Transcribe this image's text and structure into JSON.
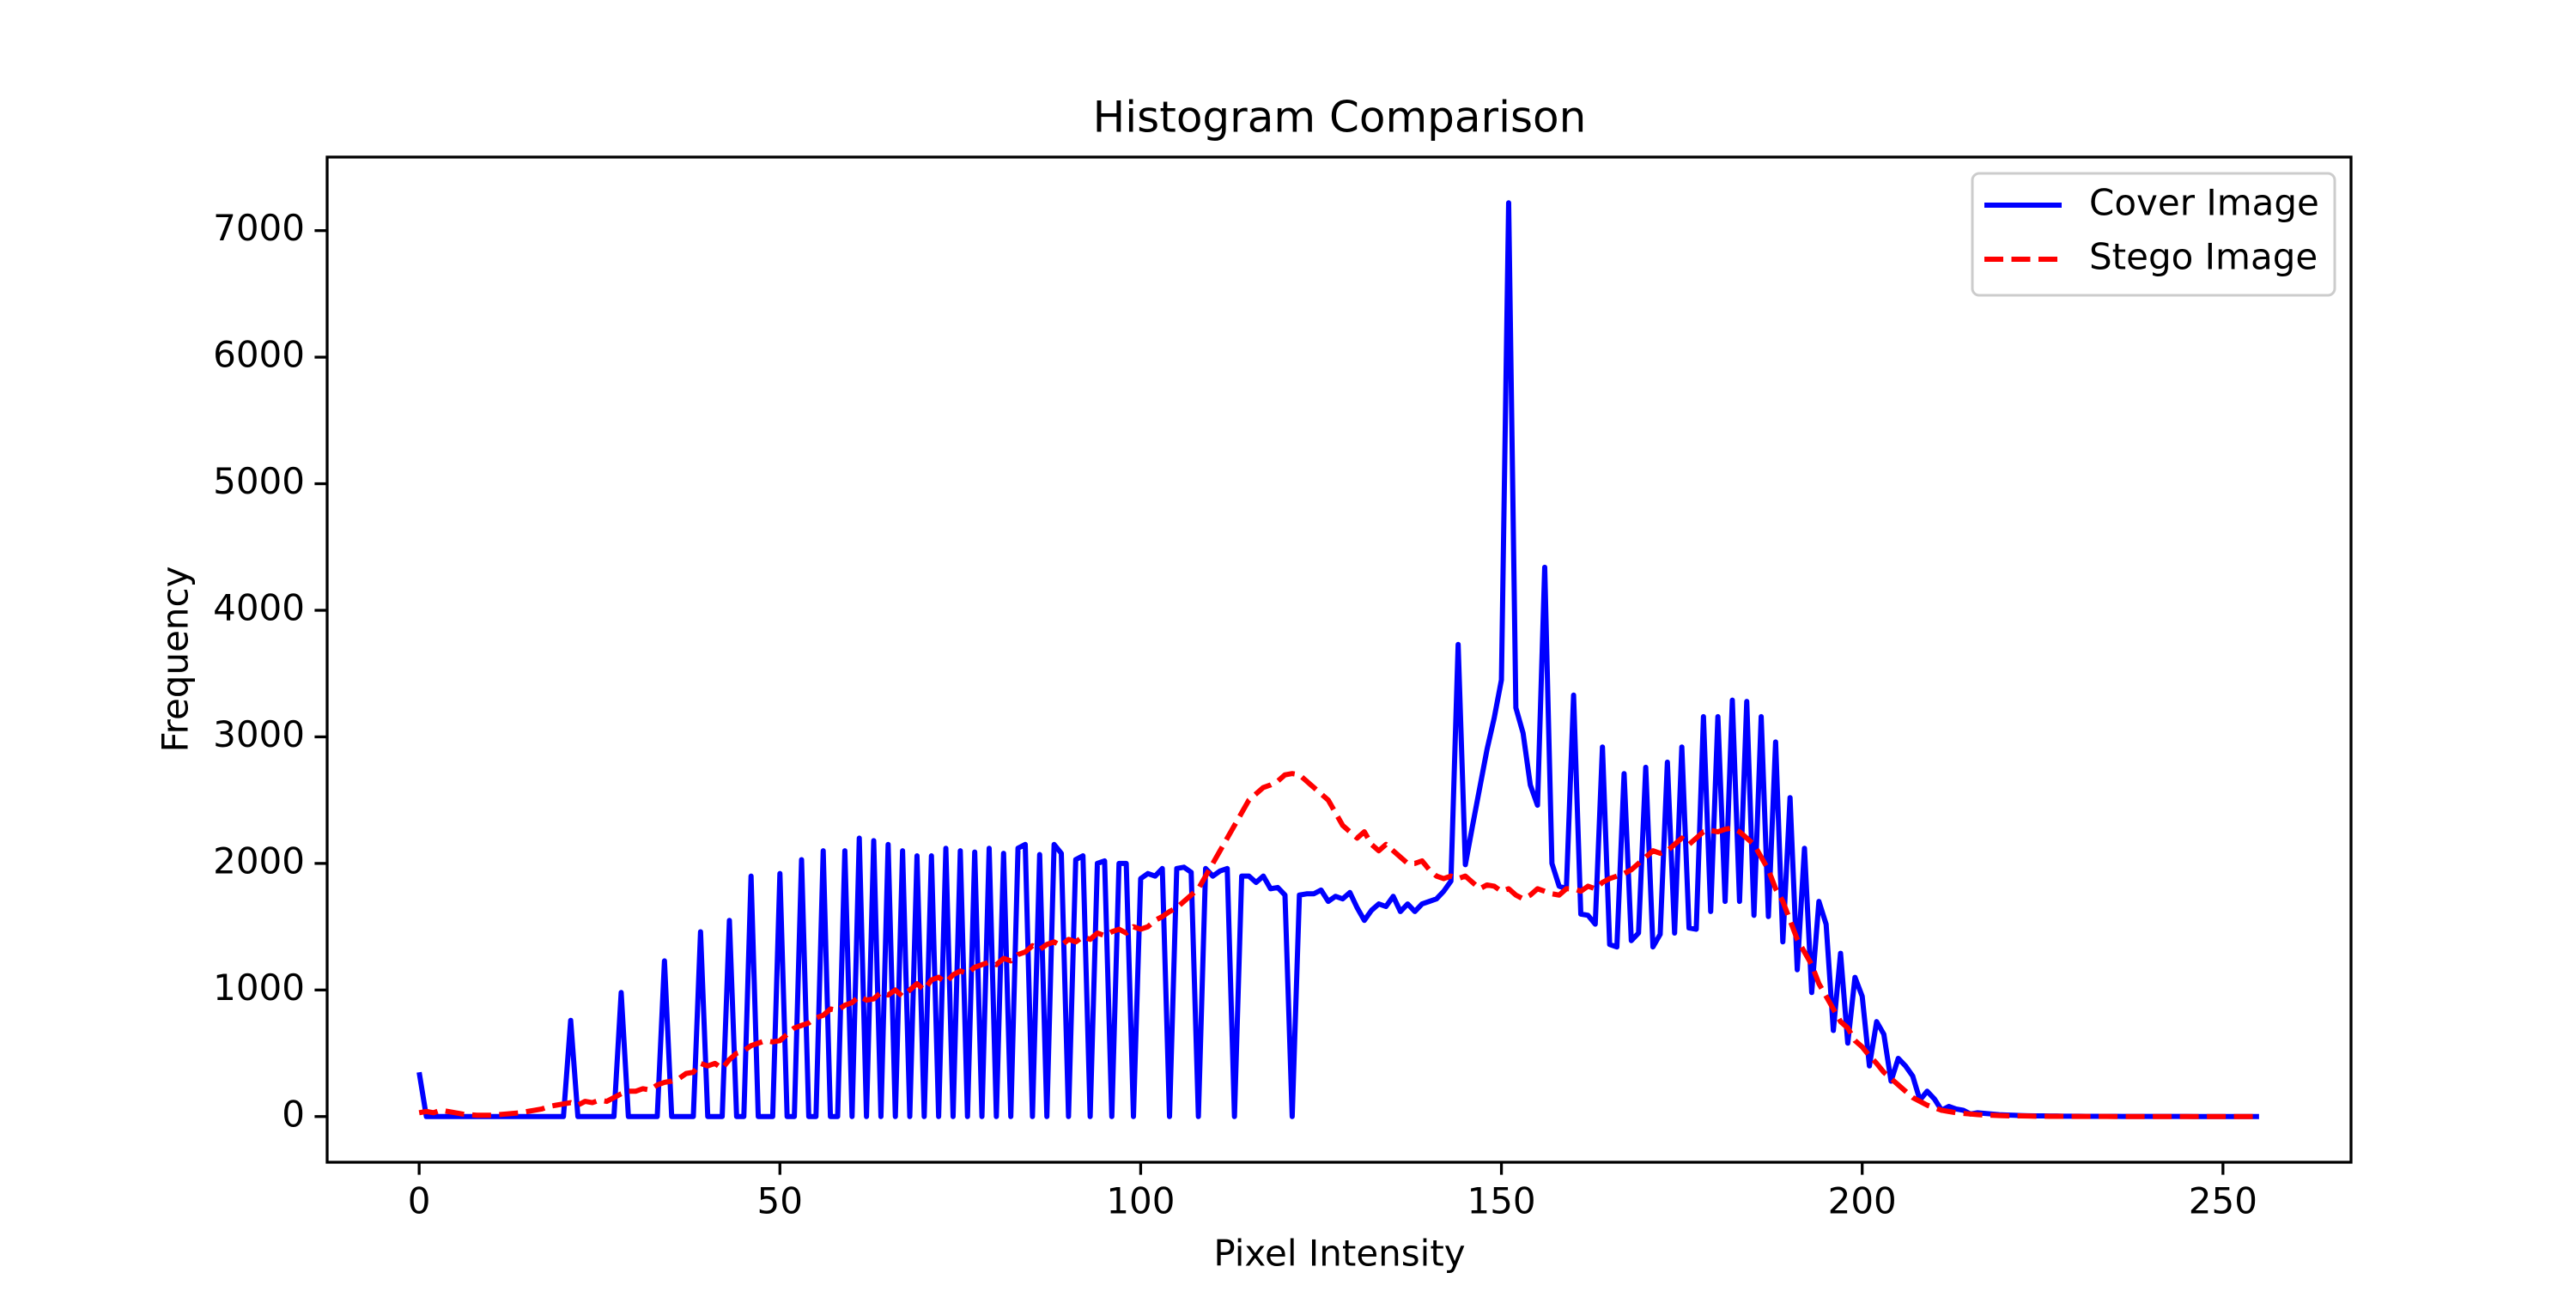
{
  "chart_data": {
    "type": "line",
    "title": "Histogram Comparison",
    "x_label": "Pixel Intensity",
    "y_label": "Frequency",
    "x": [
      0,
      1,
      2,
      3,
      4,
      5,
      6,
      7,
      8,
      9,
      10,
      11,
      12,
      13,
      14,
      15,
      16,
      17,
      18,
      19,
      20,
      21,
      22,
      23,
      24,
      25,
      26,
      27,
      28,
      29,
      30,
      31,
      32,
      33,
      34,
      35,
      36,
      37,
      38,
      39,
      40,
      41,
      42,
      43,
      44,
      45,
      46,
      47,
      48,
      49,
      50,
      51,
      52,
      53,
      54,
      55,
      56,
      57,
      58,
      59,
      60,
      61,
      62,
      63,
      64,
      65,
      66,
      67,
      68,
      69,
      70,
      71,
      72,
      73,
      74,
      75,
      76,
      77,
      78,
      79,
      80,
      81,
      82,
      83,
      84,
      85,
      86,
      87,
      88,
      89,
      90,
      91,
      92,
      93,
      94,
      95,
      96,
      97,
      98,
      99,
      100,
      101,
      102,
      103,
      104,
      105,
      106,
      107,
      108,
      109,
      110,
      111,
      112,
      113,
      114,
      115,
      116,
      117,
      118,
      119,
      120,
      121,
      122,
      123,
      124,
      125,
      126,
      127,
      128,
      129,
      130,
      131,
      132,
      133,
      134,
      135,
      136,
      137,
      138,
      139,
      140,
      141,
      142,
      143,
      144,
      145,
      146,
      147,
      148,
      149,
      150,
      151,
      152,
      153,
      154,
      155,
      156,
      157,
      158,
      159,
      160,
      161,
      162,
      163,
      164,
      165,
      166,
      167,
      168,
      169,
      170,
      171,
      172,
      173,
      174,
      175,
      176,
      177,
      178,
      179,
      180,
      181,
      182,
      183,
      184,
      185,
      186,
      187,
      188,
      189,
      190,
      191,
      192,
      193,
      194,
      195,
      196,
      197,
      198,
      199,
      200,
      201,
      202,
      203,
      204,
      205,
      206,
      207,
      208,
      209,
      210,
      211,
      212,
      213,
      214,
      215,
      216,
      217,
      218,
      219,
      220,
      221,
      222,
      223,
      224,
      225,
      226,
      227,
      228,
      229,
      230,
      231,
      232,
      233,
      234,
      235,
      236,
      237,
      238,
      239,
      240,
      241,
      242,
      243,
      244,
      245,
      246,
      247,
      248,
      249,
      250,
      251,
      252,
      253,
      254,
      255
    ],
    "series": [
      {
        "name": "Cover Image",
        "color": "#0000ff",
        "linestyle": "solid",
        "values": [
          350,
          0,
          0,
          0,
          0,
          0,
          0,
          0,
          0,
          0,
          0,
          0,
          0,
          0,
          0,
          0,
          0,
          0,
          0,
          0,
          0,
          760,
          0,
          0,
          0,
          0,
          0,
          0,
          980,
          0,
          0,
          0,
          0,
          0,
          1230,
          0,
          0,
          0,
          0,
          1460,
          0,
          0,
          0,
          1550,
          0,
          0,
          1900,
          0,
          0,
          0,
          1920,
          0,
          0,
          2030,
          0,
          0,
          2100,
          0,
          0,
          2100,
          0,
          2200,
          0,
          2180,
          0,
          2150,
          0,
          2100,
          0,
          2060,
          0,
          2060,
          0,
          2120,
          0,
          2100,
          0,
          2090,
          0,
          2120,
          0,
          2080,
          0,
          2120,
          2150,
          0,
          2070,
          0,
          2150,
          2080,
          0,
          2030,
          2060,
          0,
          2000,
          2020,
          0,
          2000,
          2000,
          0,
          1880,
          1920,
          1900,
          1960,
          0,
          1960,
          1970,
          1930,
          0,
          1960,
          1900,
          1940,
          1960,
          0,
          1900,
          1900,
          1850,
          1900,
          1800,
          1810,
          1750,
          0,
          1750,
          1760,
          1760,
          1790,
          1700,
          1740,
          1720,
          1770,
          1650,
          1550,
          1630,
          1680,
          1660,
          1740,
          1620,
          1680,
          1620,
          1680,
          1700,
          1720,
          1780,
          1860,
          3730,
          1990,
          2300,
          2600,
          2900,
          3150,
          3450,
          7220,
          3230,
          3030,
          2620,
          2460,
          4340,
          2000,
          1820,
          1800,
          3330,
          1600,
          1590,
          1520,
          2920,
          1360,
          1340,
          2710,
          1390,
          1450,
          2760,
          1340,
          1440,
          2800,
          1450,
          2920,
          1490,
          1480,
          3160,
          1620,
          3160,
          1700,
          3290,
          1700,
          3280,
          1590,
          3160,
          1580,
          2960,
          1380,
          2520,
          1160,
          2120,
          980,
          1700,
          1520,
          680,
          1290,
          580,
          1100,
          950,
          400,
          750,
          650,
          280,
          460,
          400,
          320,
          130,
          200,
          140,
          50,
          80,
          60,
          50,
          20,
          30,
          25,
          20,
          15,
          12,
          10,
          8,
          6,
          5,
          5,
          4,
          4,
          3,
          3,
          3,
          2,
          2,
          2,
          2,
          2,
          1,
          1,
          1,
          1,
          1,
          1,
          1,
          1,
          1,
          1,
          0,
          0,
          0,
          0,
          0,
          0,
          0,
          0,
          0,
          0
        ]
      },
      {
        "name": "Stego Image",
        "color": "#ff0000",
        "linestyle": "dashed",
        "values": [
          30,
          40,
          30,
          50,
          40,
          30,
          20,
          15,
          10,
          10,
          10,
          15,
          20,
          25,
          30,
          40,
          50,
          60,
          80,
          90,
          100,
          110,
          90,
          120,
          110,
          130,
          120,
          150,
          180,
          200,
          200,
          220,
          210,
          250,
          270,
          280,
          300,
          340,
          350,
          420,
          400,
          420,
          380,
          450,
          500,
          520,
          560,
          580,
          600,
          590,
          600,
          650,
          700,
          720,
          740,
          780,
          800,
          850,
          840,
          880,
          900,
          950,
          920,
          930,
          980,
          960,
          1000,
          950,
          1000,
          1050,
          1000,
          1080,
          1100,
          1060,
          1120,
          1150,
          1130,
          1180,
          1200,
          1220,
          1200,
          1250,
          1230,
          1280,
          1300,
          1350,
          1320,
          1360,
          1380,
          1350,
          1400,
          1380,
          1420,
          1400,
          1450,
          1430,
          1460,
          1480,
          1450,
          1500,
          1480,
          1500,
          1550,
          1580,
          1620,
          1650,
          1700,
          1750,
          1800,
          1900,
          2000,
          2100,
          2200,
          2300,
          2400,
          2500,
          2550,
          2600,
          2620,
          2650,
          2700,
          2710,
          2700,
          2650,
          2600,
          2550,
          2500,
          2400,
          2300,
          2250,
          2200,
          2250,
          2150,
          2100,
          2150,
          2100,
          2050,
          2000,
          2000,
          2020,
          1950,
          1900,
          1880,
          1900,
          1880,
          1900,
          1850,
          1800,
          1830,
          1820,
          1780,
          1800,
          1750,
          1720,
          1750,
          1800,
          1780,
          1760,
          1750,
          1800,
          1800,
          1780,
          1820,
          1800,
          1850,
          1880,
          1900,
          1920,
          1950,
          2000,
          2050,
          2100,
          2080,
          2100,
          2150,
          2200,
          2150,
          2200,
          2250,
          2260,
          2250,
          2270,
          2280,
          2250,
          2200,
          2150,
          2050,
          1950,
          1800,
          1700,
          1550,
          1400,
          1300,
          1200,
          1050,
          950,
          850,
          750,
          700,
          600,
          550,
          480,
          420,
          350,
          300,
          250,
          200,
          150,
          120,
          90,
          70,
          50,
          40,
          30,
          25,
          20,
          15,
          12,
          10,
          8,
          6,
          5,
          5,
          4,
          3,
          3,
          2,
          2,
          2,
          1,
          1,
          1,
          1,
          1,
          1,
          0,
          0,
          0,
          0,
          0,
          0,
          0,
          0,
          0,
          0,
          0,
          0,
          0,
          0,
          0,
          0,
          0,
          0,
          0,
          0,
          0
        ]
      }
    ],
    "xlim": [
      -12.75,
      267.75
    ],
    "ylim": [
      -361,
      7581
    ],
    "xticks": [
      0,
      50,
      100,
      150,
      200,
      250
    ],
    "yticks": [
      0,
      1000,
      2000,
      3000,
      4000,
      5000,
      6000,
      7000
    ],
    "grid": false,
    "legend": "upper right"
  }
}
